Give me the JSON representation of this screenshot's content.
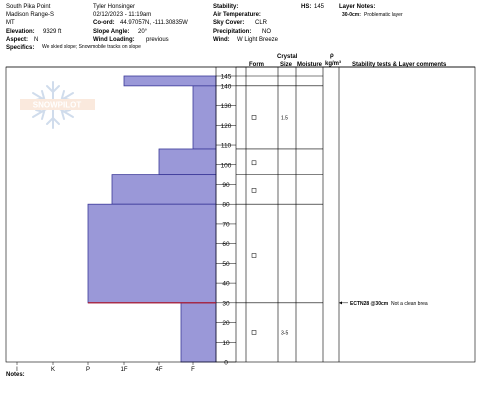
{
  "header": {
    "location": "South Pika Point",
    "range": "Madison Range-S",
    "state": "MT",
    "elevation_label": "Elevation:",
    "elevation_value": "9329 ft",
    "aspect_label": "Aspect:",
    "aspect_value": "N",
    "observer": "Tyler Honsinger",
    "datetime": "02/12/2023 - 11:19am",
    "coord_label": "Co-ord:",
    "coord_value": "44.97057N, -111.30835W",
    "slope_label": "Slope Angle:",
    "slope_value": "20°",
    "wind_loading_label": "Wind Loading:",
    "wind_loading_value": "previous",
    "stability_label": "Stability:",
    "air_temp_label": "Air Temperature:",
    "sky_label": "Sky Cover:",
    "sky_value": "CLR",
    "precip_label": "Precipitation:",
    "precip_value": "NO",
    "wind_label": "Wind:",
    "wind_value": "W Light Breeze",
    "hs_label": "HS:",
    "hs_value": "145",
    "layer_notes_label": "Layer Notes:",
    "layer_note_depth": "30-0cm:",
    "layer_note_text": "Problematic layer",
    "specifics_label": "Specifics:",
    "specifics_value": "We skied slope; Snowmobile tracks on slope"
  },
  "columns": {
    "form": "Form",
    "crystal": "Crystal",
    "size": "Size",
    "moisture": "Moisture",
    "rho": "ρ",
    "density_unit": "kg/m³",
    "stability": "Stability tests & Layer comments"
  },
  "watermark": "SNOWPILOT",
  "footer": {
    "notes_label": "Notes:"
  },
  "accent_colors": {
    "profile_fill": "#9a98d8",
    "profile_stroke": "#3c3a99",
    "layer_highlight": "#b01020"
  },
  "chart_data": {
    "type": "area",
    "title": "",
    "hardness_axis": [
      "I",
      "K",
      "P",
      "1F",
      "4F",
      "F"
    ],
    "depth_axis_ticks": [
      0,
      10,
      20,
      30,
      40,
      50,
      60,
      70,
      80,
      90,
      100,
      110,
      120,
      130,
      140,
      145
    ],
    "depth_range": [
      0,
      145
    ],
    "layers": [
      {
        "top": 145,
        "bottom": 140,
        "hardness": "1F"
      },
      {
        "top": 140,
        "bottom": 108,
        "hardness": "F"
      },
      {
        "top": 108,
        "bottom": 95,
        "hardness": "4F"
      },
      {
        "top": 95,
        "bottom": 80,
        "hardness": "1F+"
      },
      {
        "top": 80,
        "bottom": 30,
        "hardness": "P"
      },
      {
        "top": 30,
        "bottom": 0,
        "hardness": "F+"
      }
    ],
    "layer_boundaries": [
      145,
      140,
      108,
      95,
      80,
      30
    ],
    "crystals": [
      {
        "depth": 124,
        "size": "1.5"
      },
      {
        "depth": 101,
        "size": ""
      },
      {
        "depth": 87,
        "size": ""
      },
      {
        "depth": 54,
        "size": ""
      },
      {
        "depth": 15,
        "size": "3-5"
      }
    ],
    "stability_tests": [
      {
        "depth": 30,
        "code": "ECTN28 @30cm",
        "comment": "Not a clean brea"
      }
    ]
  }
}
